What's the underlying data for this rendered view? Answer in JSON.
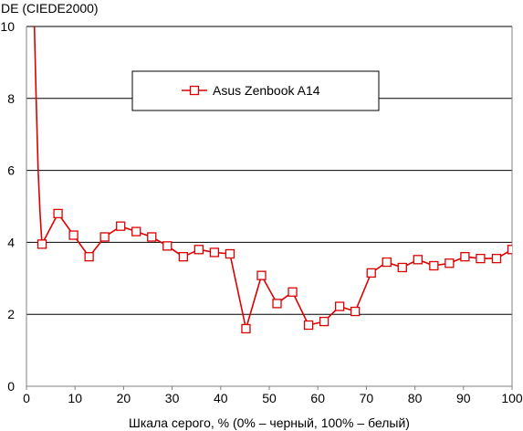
{
  "chart_data": {
    "type": "line",
    "title": "",
    "ylabel": "DE (CIEDE2000)",
    "xlabel": "Шкала серого, % (0% – черный, 100% – белый)",
    "xlim": [
      0,
      100
    ],
    "ylim": [
      0,
      10
    ],
    "xticks": [
      0,
      10,
      20,
      30,
      40,
      50,
      60,
      70,
      80,
      90,
      100
    ],
    "yticks": [
      0,
      2,
      4,
      6,
      8,
      10
    ],
    "grid": "horizontal",
    "legend": "top-center",
    "colors": {
      "series": "#dd0000",
      "grid": "#000000",
      "axis": "#808080"
    },
    "series": [
      {
        "name": "Asus Zenbook A14",
        "marker": "square",
        "x": [
          1.6,
          2.0,
          2.4,
          2.8,
          3.2,
          6.5,
          9.7,
          12.9,
          16.1,
          19.4,
          22.6,
          25.8,
          29.0,
          32.3,
          35.5,
          38.7,
          41.9,
          45.2,
          48.4,
          51.6,
          54.8,
          58.1,
          61.3,
          64.5,
          67.7,
          71.0,
          74.2,
          77.4,
          80.6,
          83.9,
          87.1,
          90.3,
          93.5,
          96.8,
          100
        ],
        "y": [
          10.2,
          8.0,
          6.0,
          4.8,
          3.95,
          4.8,
          4.2,
          3.6,
          4.15,
          4.45,
          4.3,
          4.15,
          3.9,
          3.6,
          3.8,
          3.72,
          3.68,
          1.6,
          3.08,
          2.3,
          2.62,
          1.7,
          1.8,
          2.22,
          2.08,
          3.15,
          3.45,
          3.3,
          3.52,
          3.35,
          3.42,
          3.6,
          3.55,
          3.55,
          3.8
        ],
        "marked": [
          false,
          false,
          false,
          false,
          true,
          true,
          true,
          true,
          true,
          true,
          true,
          true,
          true,
          true,
          true,
          true,
          true,
          true,
          true,
          true,
          true,
          true,
          true,
          true,
          true,
          true,
          true,
          true,
          true,
          true,
          true,
          true,
          true,
          true,
          true
        ]
      }
    ]
  }
}
